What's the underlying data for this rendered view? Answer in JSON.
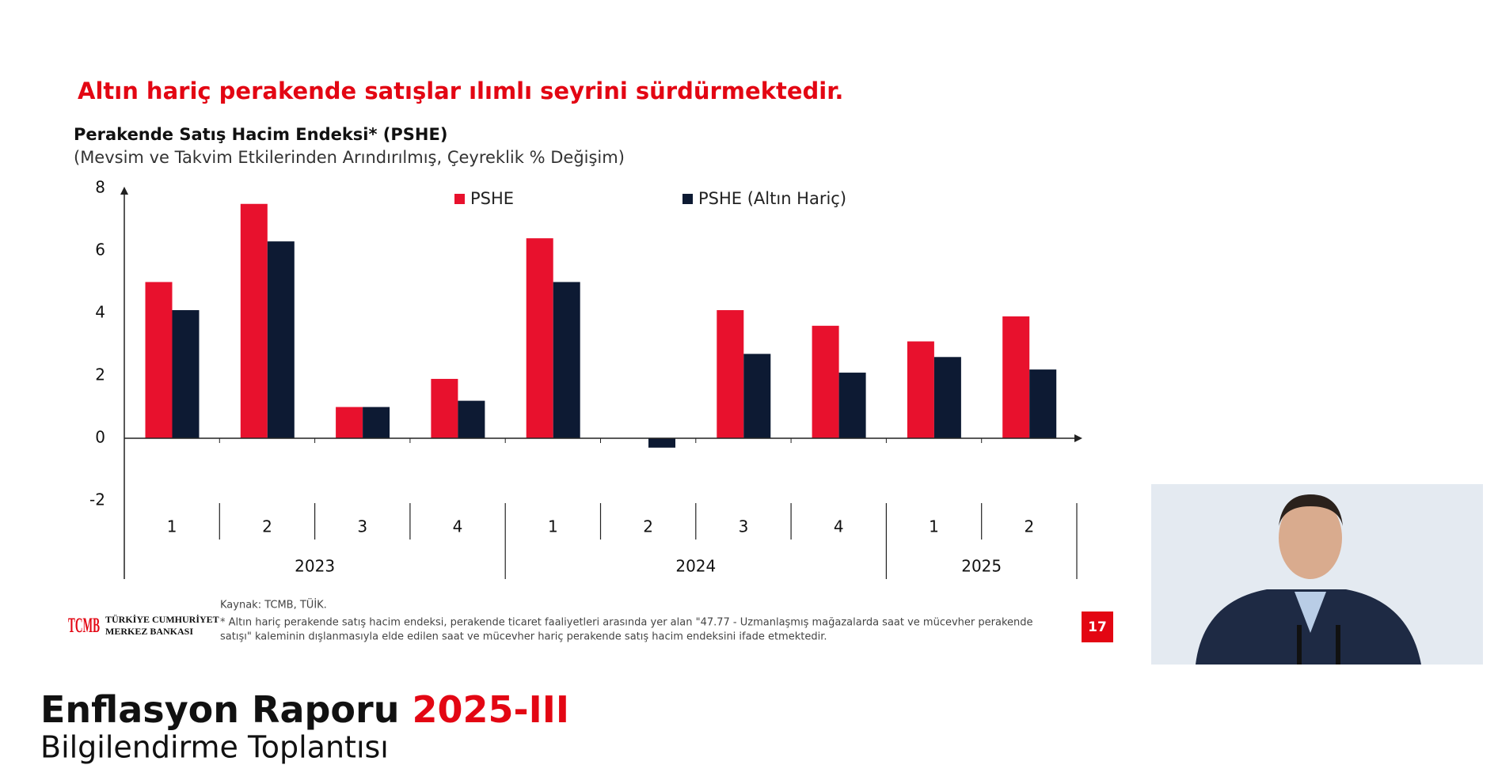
{
  "headline": "Altın hariç perakende satışlar ılımlı seyrini sürdürmektedir.",
  "chart_data": {
    "type": "bar",
    "title": "Perakende Satış Hacim Endeksi* (PSHE)",
    "subtitle": "(Mevsim ve Takvim Etkilerinden Arındırılmış, Çeyreklik % Değişim)",
    "categories": [
      "1",
      "2",
      "3",
      "4",
      "1",
      "2",
      "3",
      "4",
      "1",
      "2"
    ],
    "groups": [
      "2023",
      "2024",
      "2025"
    ],
    "series": [
      {
        "name": "PSHE",
        "color": "#e8112d",
        "values": [
          5.0,
          7.5,
          1.0,
          1.9,
          6.4,
          0,
          4.1,
          3.6,
          3.1,
          3.9
        ]
      },
      {
        "name": "PSHE (Altın Hariç)",
        "color": "#0d1a33",
        "values": [
          4.1,
          6.3,
          1.0,
          1.2,
          5.0,
          -0.3,
          2.7,
          2.1,
          2.6,
          2.2
        ]
      }
    ],
    "ylim": [
      -2,
      8
    ],
    "yticks": [
      -2,
      0,
      2,
      4,
      6,
      8
    ],
    "grid": false,
    "legend": "top"
  },
  "footer": {
    "source": "Kaynak: TCMB, TÜİK.",
    "note_lines": [
      "* Altın hariç perakende satış hacim endeksi, perakende ticaret faaliyetleri arasında yer alan \"47.77 - Uzmanlaşmış mağazalarda saat ve mücevher perakende",
      "satışı\" kaleminin dışlanmasıyla elde edilen saat ve mücevher hariç perakende satış hacim endeksini ifade etmektedir."
    ],
    "logo_lines": [
      "TÜRKİYE CUMHURİYET",
      "MERKEZ BANKASI"
    ],
    "logo_mark": "TCMB",
    "page_number": "17"
  },
  "banner": {
    "title": "Enflasyon Raporu",
    "edition": "2025-III",
    "subtitle": "Bilgilendirme Toplantısı"
  }
}
